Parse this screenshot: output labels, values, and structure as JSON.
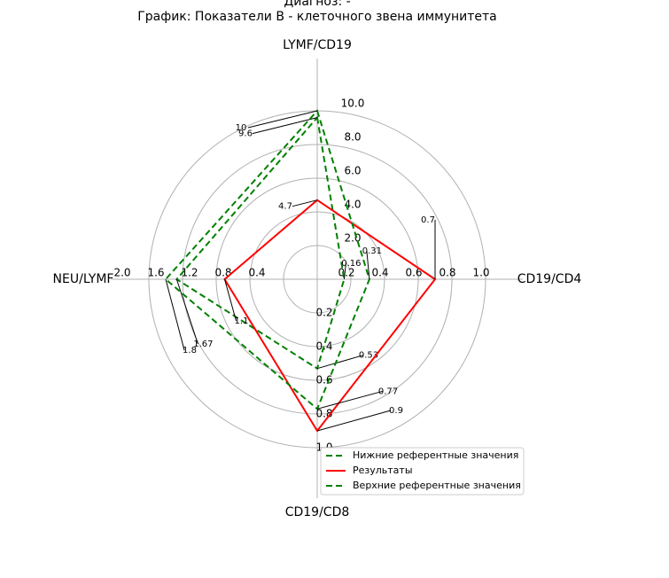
{
  "chart_data": {
    "type": "radar",
    "title": "Диагноз: -",
    "subtitle": "График: Показатели В - клеточного звена иммунитета",
    "categories": [
      "LYMF/CD19",
      "CD19/CD4",
      "CD19/CD8",
      "NEU/LYMF"
    ],
    "rlims": [
      [
        0,
        10
      ],
      [
        0,
        1
      ],
      [
        0,
        1
      ],
      [
        0,
        2
      ]
    ],
    "rticks": [
      [
        {
          "value": 2,
          "label": "2.0"
        },
        {
          "value": 4,
          "label": "4.0"
        },
        {
          "value": 6,
          "label": "6.0"
        },
        {
          "value": 8,
          "label": "8.0"
        },
        {
          "value": 10,
          "label": "10.0"
        }
      ],
      [
        0.2,
        0.4,
        0.6,
        0.8,
        {
          "value": 1,
          "label": "1.0"
        }
      ],
      [
        0.2,
        0.4,
        0.6,
        0.8,
        {
          "value": 1,
          "label": "1.0"
        }
      ],
      [
        0.4,
        0.8,
        1.2,
        1.6,
        {
          "value": 2,
          "label": "2.0"
        }
      ]
    ],
    "grid": true,
    "legend": "lower right",
    "series": [
      {
        "name": "Нижние референтные значения",
        "color": "#008000",
        "linestyle": "dashed",
        "values": [
          9.6,
          0.16,
          0.53,
          1.67
        ]
      },
      {
        "name": "Результаты",
        "color": "#ff0000",
        "linestyle": "solid",
        "values": [
          4.7,
          0.7,
          0.9,
          1.1
        ]
      },
      {
        "name": "Верхние референтные значения",
        "color": "#008000",
        "linestyle": "dashed",
        "values": [
          10,
          0.31,
          0.77,
          1.8
        ]
      }
    ]
  }
}
